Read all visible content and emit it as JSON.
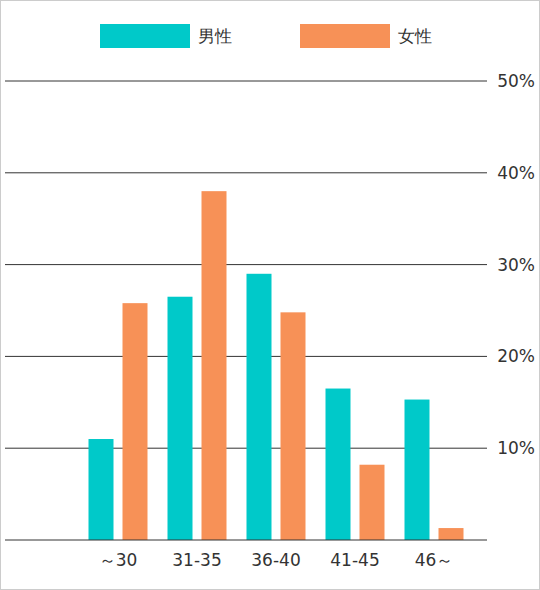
{
  "chart_data": {
    "type": "bar",
    "categories": [
      "～30",
      "31-35",
      "36-40",
      "41-45",
      "46～"
    ],
    "series": [
      {
        "name": "男性",
        "color": "#00c9c9",
        "values": [
          11,
          26.5,
          29,
          16.5,
          15.3
        ]
      },
      {
        "name": "女性",
        "color": "#f79157",
        "values": [
          25.8,
          38,
          24.8,
          8.2,
          1.3
        ]
      }
    ],
    "ylim": [
      0,
      50
    ],
    "yticks": [
      {
        "value": 10,
        "label": "10%"
      },
      {
        "value": 20,
        "label": "20%"
      },
      {
        "value": 30,
        "label": "30%"
      },
      {
        "value": 40,
        "label": "40%"
      },
      {
        "value": 50,
        "label": "50%"
      }
    ],
    "grid": true,
    "legend": "top"
  }
}
